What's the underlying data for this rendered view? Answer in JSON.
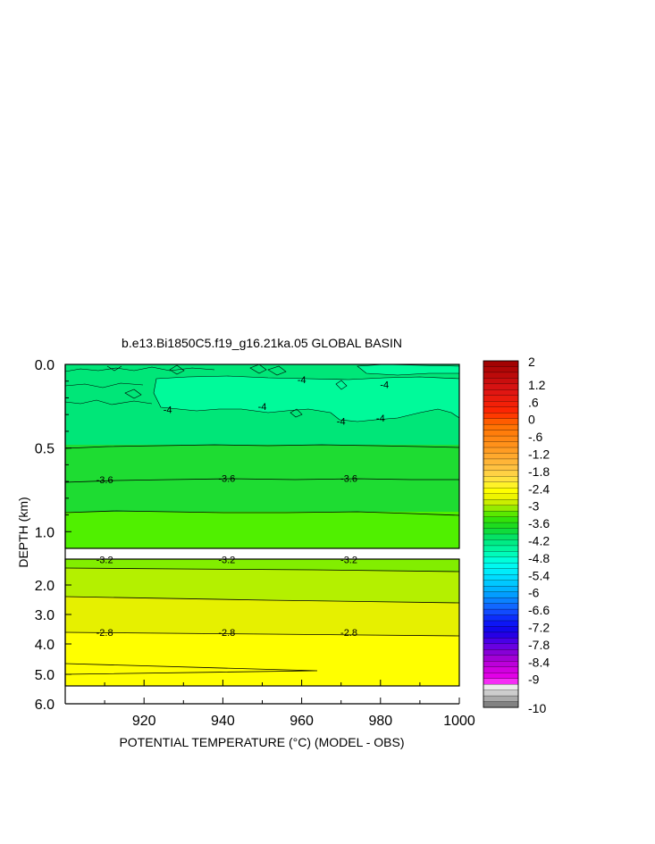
{
  "chart_data": {
    "type": "heatmap",
    "title": "b.e13.Bi1850C5.f19_g16.21ka.05 GLOBAL BASIN",
    "xlabel": "POTENTIAL TEMPERATURE (°C) (MODEL - OBS)",
    "ylabel": "DEPTH (km)",
    "xlim": [
      900,
      1000
    ],
    "x_ticks": [
      "920",
      "940",
      "960",
      "980",
      "1000"
    ],
    "upper_panel": {
      "ylim": [
        0.0,
        1.1
      ],
      "y_ticks": [
        "0.0",
        "0.5",
        "1.0"
      ],
      "bands": [
        {
          "from": 0.0,
          "to": 0.5,
          "value": -4.0
        },
        {
          "from": 0.5,
          "to": 0.88,
          "value": -3.6
        },
        {
          "from": 0.88,
          "to": 1.1,
          "value": -3.4
        }
      ],
      "contour_labels": [
        {
          "text": "-4",
          "x": 960,
          "y": 0.09
        },
        {
          "text": "-4",
          "x": 981,
          "y": 0.12
        },
        {
          "text": "-4",
          "x": 926,
          "y": 0.27
        },
        {
          "text": "-4",
          "x": 950,
          "y": 0.25
        },
        {
          "text": "-4",
          "x": 970,
          "y": 0.34
        },
        {
          "text": "-4",
          "x": 980,
          "y": 0.32
        },
        {
          "text": "-3.6",
          "x": 910,
          "y": 0.69
        },
        {
          "text": "-3.6",
          "x": 941,
          "y": 0.68
        },
        {
          "text": "-3.6",
          "x": 972,
          "y": 0.68
        }
      ]
    },
    "lower_panel": {
      "ylim": [
        1.0,
        6.0
      ],
      "y_ticks": [
        "2.0",
        "3.0",
        "4.0",
        "5.0",
        "6.0"
      ],
      "contour_labels": [
        {
          "text": "-3.2",
          "x": 910,
          "y": 1.3
        },
        {
          "text": "-3.2",
          "x": 941,
          "y": 1.3
        },
        {
          "text": "-3.2",
          "x": 972,
          "y": 1.3
        },
        {
          "text": "-2.8",
          "x": 910,
          "y": 3.6
        },
        {
          "text": "-2.8",
          "x": 941,
          "y": 3.6
        },
        {
          "text": "-2.8",
          "x": 972,
          "y": 3.6
        }
      ]
    },
    "colorbar": {
      "min": -10,
      "max": 2,
      "labels": [
        "2",
        "1.2",
        ".6",
        "0",
        "-.6",
        "-1.2",
        "-1.8",
        "-2.4",
        "-3",
        "-3.6",
        "-4.2",
        "-4.8",
        "-5.4",
        "-6",
        "-6.6",
        "-7.2",
        "-7.8",
        "-8.4",
        "-9",
        "-10"
      ]
    },
    "colors": {
      "band_m44": "#00fa9a",
      "band_m40": "#00e678",
      "band_m36": "#1edc32",
      "band_m34": "#50f000",
      "band_m32": "#82ee00",
      "band_m30": "#b4f000",
      "band_m28": "#e6f000",
      "band_m26": "#ffff00"
    }
  }
}
